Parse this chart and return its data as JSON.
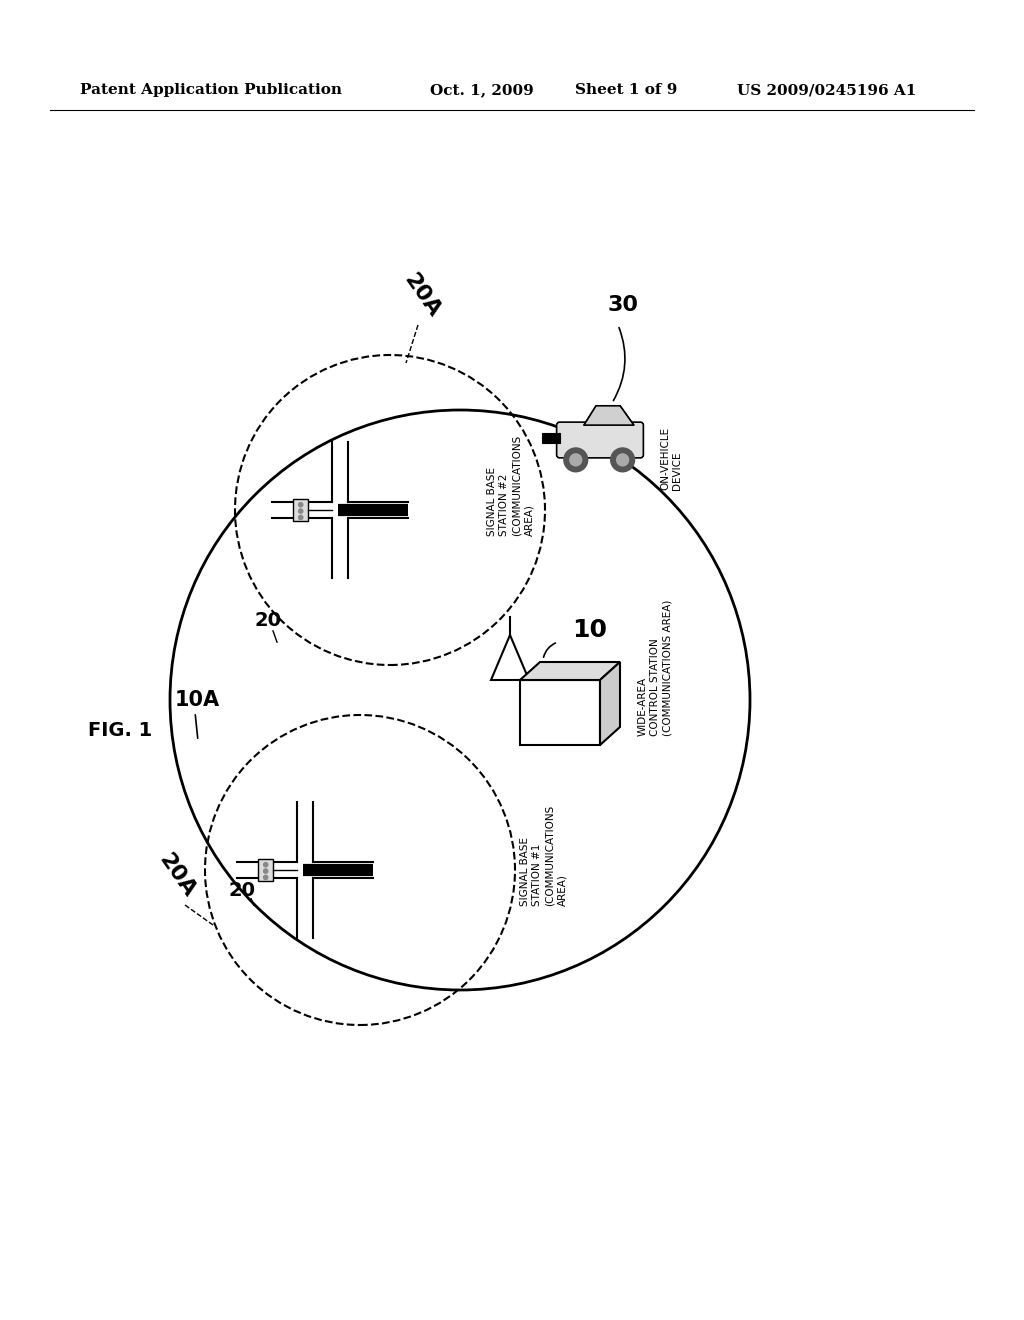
{
  "bg_color": "#ffffff",
  "header_text": "Patent Application Publication",
  "header_date": "Oct. 1, 2009",
  "header_sheet": "Sheet 1 of 9",
  "header_patent": "US 2009/0245196 A1",
  "fig_label": "FIG. 1",
  "label_10A": "10A",
  "label_10": "10",
  "label_20_upper": "20",
  "label_20_lower": "20",
  "label_20A_upper": "20A",
  "label_20A_lower": "20A",
  "label_30": "30",
  "wide_area_label": "WIDE-AREA\nCONTROL STATION\n(COMMUNICATIONS AREA)",
  "signal_base_2_label": "SIGNAL BASE\nSTATION #2\n(COMMUNICATIONS\nAREA)",
  "signal_base_1_label": "SIGNAL BASE\nSTATION #1\n(COMMUNICATIONS\nAREA)",
  "on_vehicle_label": "ON-VEHICLE\nDEVICE"
}
